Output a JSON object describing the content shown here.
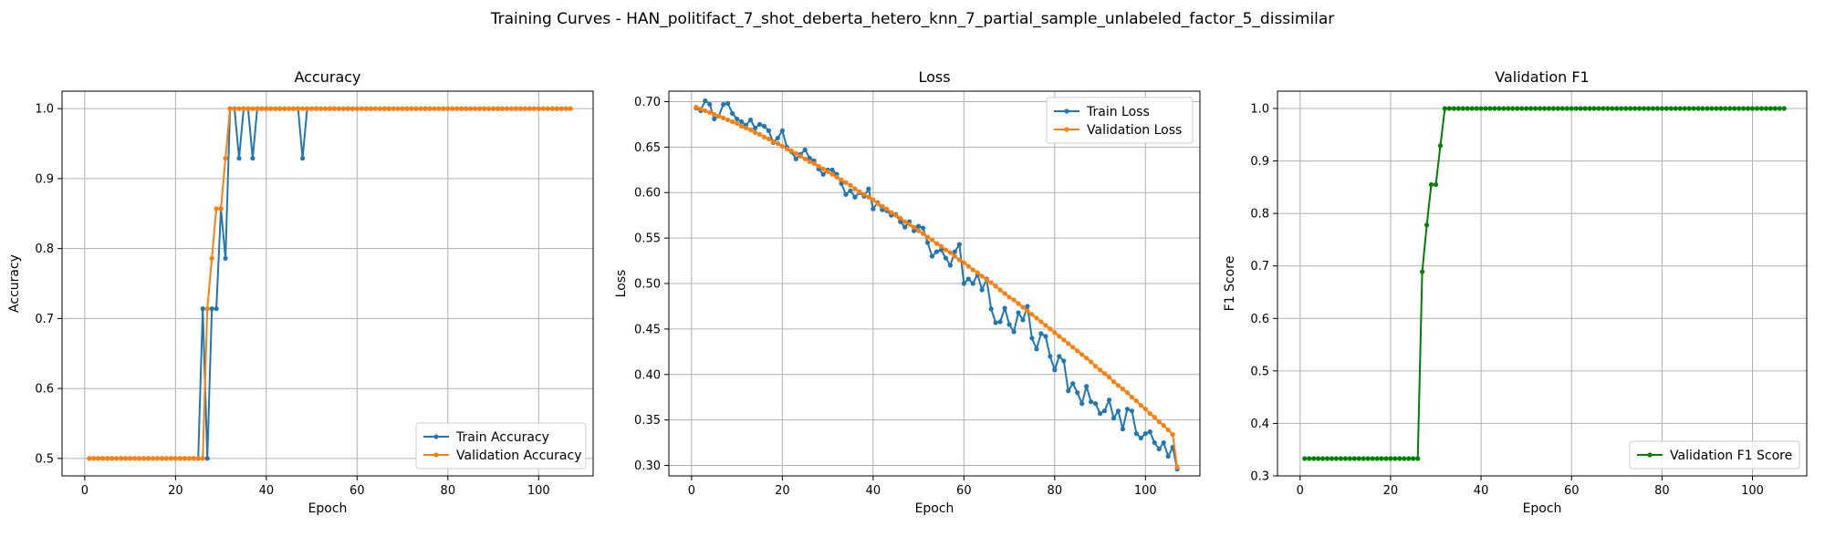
{
  "figure": {
    "suptitle": "Training Curves - HAN_politifact_7_shot_deberta_hetero_knn_7_partial_sample_unlabeled_factor_5_dissimilar"
  },
  "colors": {
    "train": "#1f77b4",
    "validation": "#ff7f0e",
    "f1": "#008000",
    "grid": "#b0b0b0"
  },
  "chart_data": [
    {
      "type": "line",
      "title": "Accuracy",
      "xlabel": "Epoch",
      "ylabel": "Accuracy",
      "xlim": [
        -5,
        112
      ],
      "ylim": [
        0.475,
        1.025
      ],
      "xticks": [
        0,
        20,
        40,
        60,
        80,
        100
      ],
      "yticks": [
        0.5,
        0.6,
        0.7,
        0.8,
        0.9,
        1.0
      ],
      "xtick_labels": [
        "0",
        "20",
        "40",
        "60",
        "80",
        "100"
      ],
      "ytick_labels": [
        "0.5",
        "0.6",
        "0.7",
        "0.8",
        "0.9",
        "1.0"
      ],
      "grid": true,
      "legend": "lower-right",
      "x_range": [
        1,
        107
      ],
      "series": [
        {
          "name": "Train Accuracy",
          "color": "#1f77b4",
          "values": [
            0.5,
            0.5,
            0.5,
            0.5,
            0.5,
            0.5,
            0.5,
            0.5,
            0.5,
            0.5,
            0.5,
            0.5,
            0.5,
            0.5,
            0.5,
            0.5,
            0.5,
            0.5,
            0.5,
            0.5,
            0.5,
            0.5,
            0.5,
            0.5,
            0.5,
            0.714,
            0.5,
            0.714,
            0.714,
            0.857,
            0.786,
            1.0,
            1.0,
            0.929,
            1.0,
            1.0,
            0.929,
            1.0,
            1.0,
            1.0,
            1.0,
            1.0,
            1.0,
            1.0,
            1.0,
            1.0,
            1.0,
            0.929,
            1.0,
            1.0,
            1.0,
            1.0,
            1.0,
            1.0,
            1.0,
            1.0,
            1.0,
            1.0,
            1.0,
            1.0,
            1.0,
            1.0,
            1.0,
            1.0,
            1.0,
            1.0,
            1.0,
            1.0,
            1.0,
            1.0,
            1.0,
            1.0,
            1.0,
            1.0,
            1.0,
            1.0,
            1.0,
            1.0,
            1.0,
            1.0,
            1.0,
            1.0,
            1.0,
            1.0,
            1.0,
            1.0,
            1.0,
            1.0,
            1.0,
            1.0,
            1.0,
            1.0,
            1.0,
            1.0,
            1.0,
            1.0,
            1.0,
            1.0,
            1.0,
            1.0,
            1.0,
            1.0,
            1.0,
            1.0,
            1.0,
            1.0,
            1.0
          ]
        },
        {
          "name": "Validation Accuracy",
          "color": "#ff7f0e",
          "values": [
            0.5,
            0.5,
            0.5,
            0.5,
            0.5,
            0.5,
            0.5,
            0.5,
            0.5,
            0.5,
            0.5,
            0.5,
            0.5,
            0.5,
            0.5,
            0.5,
            0.5,
            0.5,
            0.5,
            0.5,
            0.5,
            0.5,
            0.5,
            0.5,
            0.5,
            0.5,
            0.714,
            0.786,
            0.857,
            0.857,
            0.929,
            1.0,
            1.0,
            1.0,
            1.0,
            1.0,
            1.0,
            1.0,
            1.0,
            1.0,
            1.0,
            1.0,
            1.0,
            1.0,
            1.0,
            1.0,
            1.0,
            1.0,
            1.0,
            1.0,
            1.0,
            1.0,
            1.0,
            1.0,
            1.0,
            1.0,
            1.0,
            1.0,
            1.0,
            1.0,
            1.0,
            1.0,
            1.0,
            1.0,
            1.0,
            1.0,
            1.0,
            1.0,
            1.0,
            1.0,
            1.0,
            1.0,
            1.0,
            1.0,
            1.0,
            1.0,
            1.0,
            1.0,
            1.0,
            1.0,
            1.0,
            1.0,
            1.0,
            1.0,
            1.0,
            1.0,
            1.0,
            1.0,
            1.0,
            1.0,
            1.0,
            1.0,
            1.0,
            1.0,
            1.0,
            1.0,
            1.0,
            1.0,
            1.0,
            1.0,
            1.0,
            1.0,
            1.0,
            1.0,
            1.0,
            1.0,
            1.0
          ]
        }
      ]
    },
    {
      "type": "line",
      "title": "Loss",
      "xlabel": "Epoch",
      "ylabel": "Loss",
      "xlim": [
        -5,
        112
      ],
      "ylim": [
        0.2885,
        0.7115
      ],
      "xticks": [
        0,
        20,
        40,
        60,
        80,
        100
      ],
      "yticks": [
        0.3,
        0.35,
        0.4,
        0.45,
        0.5,
        0.55,
        0.6,
        0.65,
        0.7
      ],
      "xtick_labels": [
        "0",
        "20",
        "40",
        "60",
        "80",
        "100"
      ],
      "ytick_labels": [
        "0.30",
        "0.35",
        "0.40",
        "0.45",
        "0.50",
        "0.55",
        "0.60",
        "0.65",
        "0.70"
      ],
      "grid": true,
      "legend": "upper-right",
      "x_range": [
        1,
        107
      ],
      "series": [
        {
          "name": "Train Loss",
          "color": "#1f77b4",
          "values": [
            0.693,
            0.69,
            0.701,
            0.697,
            0.681,
            0.684,
            0.697,
            0.698,
            0.687,
            0.681,
            0.678,
            0.674,
            0.68,
            0.671,
            0.675,
            0.673,
            0.668,
            0.655,
            0.66,
            0.668,
            0.65,
            0.645,
            0.637,
            0.642,
            0.647,
            0.638,
            0.635,
            0.626,
            0.62,
            0.625,
            0.625,
            0.62,
            0.61,
            0.598,
            0.602,
            0.595,
            0.6,
            0.596,
            0.604,
            0.582,
            0.589,
            0.581,
            0.58,
            0.575,
            0.576,
            0.568,
            0.562,
            0.568,
            0.558,
            0.563,
            0.561,
            0.545,
            0.53,
            0.535,
            0.537,
            0.528,
            0.52,
            0.535,
            0.543,
            0.5,
            0.505,
            0.5,
            0.51,
            0.493,
            0.505,
            0.472,
            0.457,
            0.458,
            0.473,
            0.455,
            0.447,
            0.468,
            0.46,
            0.475,
            0.44,
            0.428,
            0.445,
            0.442,
            0.42,
            0.405,
            0.42,
            0.415,
            0.382,
            0.39,
            0.38,
            0.368,
            0.387,
            0.37,
            0.368,
            0.357,
            0.36,
            0.372,
            0.352,
            0.36,
            0.34,
            0.362,
            0.36,
            0.335,
            0.33,
            0.335,
            0.337,
            0.325,
            0.318,
            0.325,
            0.31,
            0.32,
            0.296
          ]
        },
        {
          "name": "Validation Loss",
          "color": "#ff7f0e",
          "values": [
            0.694,
            0.692,
            0.69,
            0.688,
            0.686,
            0.684,
            0.682,
            0.68,
            0.678,
            0.676,
            0.673,
            0.671,
            0.669,
            0.666,
            0.664,
            0.661,
            0.659,
            0.656,
            0.654,
            0.651,
            0.648,
            0.646,
            0.643,
            0.64,
            0.637,
            0.634,
            0.632,
            0.629,
            0.626,
            0.623,
            0.62,
            0.617,
            0.614,
            0.611,
            0.608,
            0.604,
            0.601,
            0.598,
            0.595,
            0.592,
            0.588,
            0.585,
            0.582,
            0.578,
            0.575,
            0.572,
            0.568,
            0.565,
            0.562,
            0.558,
            0.555,
            0.551,
            0.548,
            0.544,
            0.541,
            0.537,
            0.534,
            0.53,
            0.526,
            0.523,
            0.519,
            0.515,
            0.512,
            0.508,
            0.504,
            0.501,
            0.497,
            0.493,
            0.489,
            0.485,
            0.482,
            0.478,
            0.474,
            0.47,
            0.466,
            0.462,
            0.458,
            0.454,
            0.45,
            0.446,
            0.442,
            0.438,
            0.434,
            0.43,
            0.426,
            0.422,
            0.418,
            0.414,
            0.409,
            0.405,
            0.401,
            0.397,
            0.392,
            0.388,
            0.384,
            0.38,
            0.375,
            0.371,
            0.366,
            0.362,
            0.357,
            0.353,
            0.348,
            0.344,
            0.339,
            0.334,
            0.298
          ]
        }
      ]
    },
    {
      "type": "line",
      "title": "Validation F1",
      "xlabel": "Epoch",
      "ylabel": "F1 Score",
      "xlim": [
        -5,
        112
      ],
      "ylim": [
        0.3,
        1.033
      ],
      "xticks": [
        0,
        20,
        40,
        60,
        80,
        100
      ],
      "yticks": [
        0.3,
        0.4,
        0.5,
        0.6,
        0.7,
        0.8,
        0.9,
        1.0
      ],
      "xtick_labels": [
        "0",
        "20",
        "40",
        "60",
        "80",
        "100"
      ],
      "ytick_labels": [
        "0.3",
        "0.4",
        "0.5",
        "0.6",
        "0.7",
        "0.8",
        "0.9",
        "1.0"
      ],
      "grid": true,
      "legend": "lower-right",
      "x_range": [
        1,
        107
      ],
      "series": [
        {
          "name": "Validation F1 Score",
          "color": "#008000",
          "values": [
            0.333,
            0.333,
            0.333,
            0.333,
            0.333,
            0.333,
            0.333,
            0.333,
            0.333,
            0.333,
            0.333,
            0.333,
            0.333,
            0.333,
            0.333,
            0.333,
            0.333,
            0.333,
            0.333,
            0.333,
            0.333,
            0.333,
            0.333,
            0.333,
            0.333,
            0.333,
            0.689,
            0.778,
            0.855,
            0.855,
            0.929,
            1.0,
            1.0,
            1.0,
            1.0,
            1.0,
            1.0,
            1.0,
            1.0,
            1.0,
            1.0,
            1.0,
            1.0,
            1.0,
            1.0,
            1.0,
            1.0,
            1.0,
            1.0,
            1.0,
            1.0,
            1.0,
            1.0,
            1.0,
            1.0,
            1.0,
            1.0,
            1.0,
            1.0,
            1.0,
            1.0,
            1.0,
            1.0,
            1.0,
            1.0,
            1.0,
            1.0,
            1.0,
            1.0,
            1.0,
            1.0,
            1.0,
            1.0,
            1.0,
            1.0,
            1.0,
            1.0,
            1.0,
            1.0,
            1.0,
            1.0,
            1.0,
            1.0,
            1.0,
            1.0,
            1.0,
            1.0,
            1.0,
            1.0,
            1.0,
            1.0,
            1.0,
            1.0,
            1.0,
            1.0,
            1.0,
            1.0,
            1.0,
            1.0,
            1.0,
            1.0,
            1.0,
            1.0,
            1.0,
            1.0,
            1.0,
            1.0
          ]
        }
      ]
    }
  ]
}
